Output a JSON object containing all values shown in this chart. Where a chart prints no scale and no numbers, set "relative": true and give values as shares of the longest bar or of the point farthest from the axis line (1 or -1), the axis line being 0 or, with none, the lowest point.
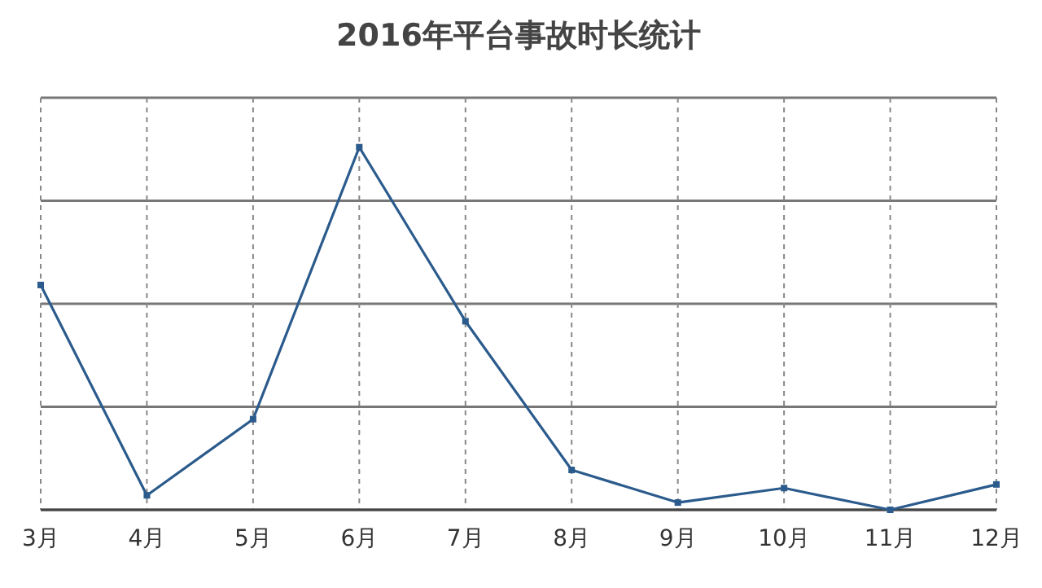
{
  "chart_data": {
    "type": "line",
    "title": "2016年平台事故时长统计",
    "relative": true,
    "categories": [
      "3月",
      "4月",
      "5月",
      "6月",
      "7月",
      "8月",
      "9月",
      "10月",
      "11月",
      "12月"
    ],
    "series": [
      {
        "color": "#2b5b8c",
        "values": [
          0.62,
          0.04,
          0.25,
          1,
          0.52,
          0.11,
          0.02,
          0.06,
          0,
          0.07
        ]
      }
    ],
    "grid": true,
    "marker": "square",
    "line_style": "solid"
  }
}
